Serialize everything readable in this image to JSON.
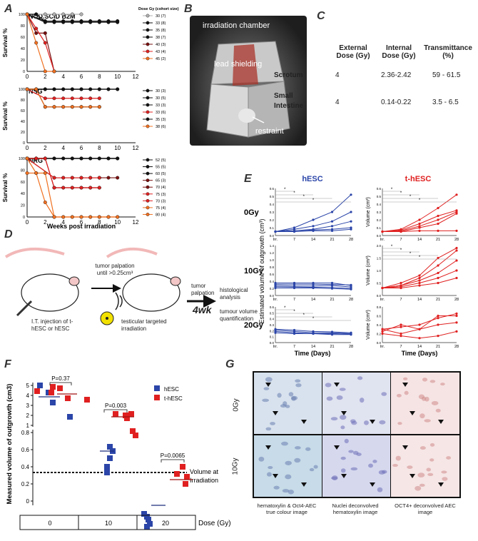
{
  "panels": {
    "A": "A",
    "B": "B",
    "C": "C",
    "D": "D",
    "E": "E",
    "F": "F",
    "G": "G"
  },
  "panelA": {
    "ylabel": "Survival %",
    "xlabel": "Weeks post irradiation",
    "xticks": [
      "0",
      "2",
      "4",
      "6",
      "8",
      "10",
      "12"
    ],
    "yticks": [
      "0",
      "20",
      "40",
      "60",
      "80",
      "100"
    ],
    "legend_title": "Dose Gy (cohort size)",
    "subplots": [
      {
        "name": "NOD.SCID B2M",
        "legend": [
          "30 (7)",
          "33 (8)",
          "35 (8)",
          "38 (7)",
          "40 (3)",
          "43 (4)",
          "45 (2)"
        ]
      },
      {
        "name": "NSG",
        "legend": [
          "30 (3)",
          "30 (5)",
          "33 (3)",
          "33 (6)",
          "35 (3)",
          "38 (6)"
        ]
      },
      {
        "name": "NRG",
        "legend": [
          "52 (5)",
          "55 (5)",
          "60 (5)",
          "65 (3)",
          "70 (4)",
          "75 (3)",
          "70 (3)",
          "75 (4)",
          "80 (4)"
        ]
      }
    ]
  },
  "panelB": {
    "label_chamber": "irradiation chamber",
    "label_shield": "lead shielding",
    "label_restraint": "restraint"
  },
  "panelC": {
    "headers": [
      "External Dose (Gy)",
      "Internal Dose (Gy)",
      "Transmittance (%)"
    ],
    "rows": [
      {
        "site": "Scrotum",
        "external": "4",
        "internal": "2.36-2.42",
        "trans": "59 - 61.5"
      },
      {
        "site": "Small Intestine",
        "external": "4",
        "internal": "0.14-0.22",
        "trans": "3.5 - 6.5"
      }
    ]
  },
  "panelD": {
    "injection": "I.T. injection of t-hESC or hESC",
    "palpation1": "tumor palpation until >0.25cm³",
    "irradiation": "testicular targeted irradiation",
    "palpation2": "tumor palpation",
    "weeks": "4wk",
    "analysis1": "histological analysis",
    "analysis2": "tumour volume quantification"
  },
  "panelE": {
    "col1": "hESC",
    "col2": "t-hESC",
    "rows": [
      "0Gy",
      "10Gy",
      "20Gy"
    ],
    "ylabel_left": "Estimated volume of outgrowth (cm³)",
    "ylabel_right": "Volume (cm³)",
    "xlabel": "Time (Days)",
    "xticks": [
      "Irr.",
      "7",
      "14",
      "21",
      "28"
    ],
    "star": "*"
  },
  "panelF": {
    "ylabel": "Measured volume of outgrowth (cm3)",
    "legend": [
      "hESC",
      "t-hESC"
    ],
    "pvalues": [
      "P=0.37",
      "P=0.003",
      "P=0.0065"
    ],
    "yticks_top": [
      "5",
      "4",
      "3",
      "2",
      "1"
    ],
    "yticks_bottom": [
      "0.8",
      "0.6",
      "0.4",
      "0.2",
      "0"
    ],
    "irr_label1": "Volume at",
    "irr_label2": "Irradiation",
    "doses": [
      "0",
      "10",
      "20"
    ],
    "dose_label": "Dose (Gy)"
  },
  "panelG": {
    "rows": [
      "0Gy",
      "10Gy"
    ],
    "captions": [
      "hematoxylin & Oct4-AEC true colour image",
      "Nuclei deconvolved  hematoxylin image",
      "OCT4+ deconvolved AEC image"
    ]
  },
  "colors": {
    "blue": "#2b45a8",
    "red": "#e02020",
    "darkred": "#7a1010",
    "orange": "#f07020",
    "gray": "#b0b0b0",
    "black": "#111111"
  }
}
